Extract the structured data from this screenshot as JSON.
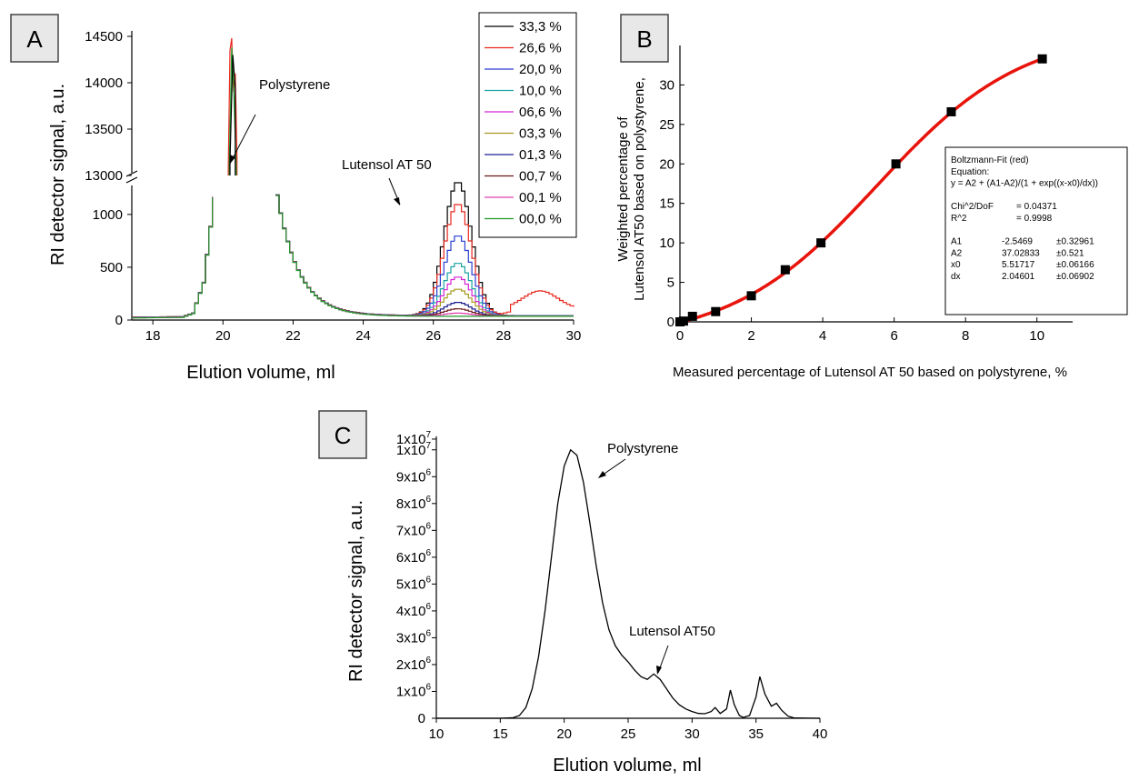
{
  "panels": {
    "a": {
      "label": "A"
    },
    "b": {
      "label": "B"
    },
    "c": {
      "label": "C"
    }
  },
  "chart_data": [
    {
      "type": "line",
      "panel": "A",
      "xlabel": "Elution volume, ml",
      "ylabel": "RI detector signal, a.u.",
      "xlim": [
        17.4,
        30
      ],
      "ylim_lower": [
        0,
        1300
      ],
      "ylim_upper": [
        13000,
        14500
      ],
      "axis_break": true,
      "x_ticks": [
        "18",
        "20",
        "22",
        "24",
        "26",
        "28",
        "30"
      ],
      "y_ticks_lower": [
        "0",
        "500",
        "1000"
      ],
      "y_ticks_upper": [
        "13000",
        "13500",
        "14000",
        "14500"
      ],
      "annotations": [
        "Polystyrene",
        "Lutensol AT 50"
      ],
      "legend_position": "top-right",
      "series": [
        {
          "name": "33,3 %",
          "color": "#000000",
          "lutensol_peak": 1270
        },
        {
          "name": "26,6 %",
          "color": "#e8281e",
          "lutensol_peak": 1060,
          "tail_bump": 175
        },
        {
          "name": "20,0 %",
          "color": "#2a3fd0",
          "lutensol_peak": 760
        },
        {
          "name": "10,0 %",
          "color": "#1aa3a3",
          "lutensol_peak": 500
        },
        {
          "name": "06,6 %",
          "color": "#d424d4",
          "lutensol_peak": 370
        },
        {
          "name": "03,3 %",
          "color": "#a89a22",
          "lutensol_peak": 255
        },
        {
          "name": "01,3 %",
          "color": "#1e1e90",
          "lutensol_peak": 130
        },
        {
          "name": "00,7 %",
          "color": "#6b1818",
          "lutensol_peak": 70
        },
        {
          "name": "00,1 %",
          "color": "#e040b0",
          "lutensol_peak": 30
        },
        {
          "name": "00,0 %",
          "color": "#1f9a2a",
          "lutensol_peak": 0
        }
      ]
    },
    {
      "type": "scatter",
      "panel": "B",
      "xlabel": "Measured percentage of Lutensol AT 50 based on polystyrene, %",
      "ylabel": "Weighted percentage of\nLutensol AT50 based on polystyrene,",
      "xlim": [
        0,
        11
      ],
      "ylim": [
        0,
        35
      ],
      "x_ticks": [
        "0",
        "2",
        "4",
        "6",
        "8",
        "10"
      ],
      "y_ticks": [
        "0",
        "5",
        "10",
        "15",
        "20",
        "25",
        "30"
      ],
      "points": [
        {
          "x": 0.0,
          "y": 0.0
        },
        {
          "x": 0.1,
          "y": 0.1
        },
        {
          "x": 0.35,
          "y": 0.7
        },
        {
          "x": 1.0,
          "y": 1.3
        },
        {
          "x": 2.0,
          "y": 3.3
        },
        {
          "x": 2.95,
          "y": 6.6
        },
        {
          "x": 3.95,
          "y": 10.0
        },
        {
          "x": 6.05,
          "y": 20.0
        },
        {
          "x": 7.6,
          "y": 26.6
        },
        {
          "x": 10.15,
          "y": 33.3
        }
      ],
      "fit": {
        "name": "Boltzmann-Fit (red)",
        "color": "#e8140c",
        "A1": -2.5469,
        "A2": 37.02833,
        "x0": 5.51717,
        "dx": 2.04601,
        "xrange": [
          0,
          10.15
        ]
      },
      "fit_box": {
        "lines": [
          {
            "cols": [
              "Boltzmann-Fit (red)"
            ]
          },
          {
            "cols": [
              "Equation:"
            ]
          },
          {
            "cols": [
              "y = A2 + (A1-A2)/(1 + exp((x-x0)/dx))"
            ]
          },
          {
            "cols": [
              ""
            ]
          },
          {
            "cols": [
              "Chi^2/DoF",
              "= 0.04371"
            ]
          },
          {
            "cols": [
              "R^2",
              "=  0.9998"
            ]
          },
          {
            "cols": [
              ""
            ]
          },
          {
            "cols": [
              "A1",
              "-2.5469",
              "±0.32961"
            ]
          },
          {
            "cols": [
              "A2",
              "37.02833",
              "±0.521"
            ]
          },
          {
            "cols": [
              "x0",
              "5.51717",
              "±0.06166"
            ]
          },
          {
            "cols": [
              "dx",
              "2.04601",
              "±0.06902"
            ]
          }
        ]
      }
    },
    {
      "type": "line",
      "panel": "C",
      "xlabel": "Elution volume, ml",
      "ylabel": "RI detector signal, a.u.",
      "xlim": [
        10,
        40
      ],
      "ylim": [
        0,
        10500000
      ],
      "x_ticks": [
        "10",
        "15",
        "20",
        "25",
        "30",
        "35",
        "40"
      ],
      "y_ticks": [
        "0",
        "1x10",
        "2x10",
        "3x10",
        "4x10",
        "5x10",
        "6x10",
        "7x10",
        "8x10",
        "9x10",
        "1x10",
        "1x10"
      ],
      "y_tick_exps": [
        "",
        "6",
        "6",
        "6",
        "6",
        "6",
        "6",
        "6",
        "6",
        "6",
        "7",
        "7"
      ],
      "annotations": [
        "Polystyrene",
        "Lutensol AT50"
      ],
      "points": [
        [
          10,
          0
        ],
        [
          15,
          0
        ],
        [
          16,
          20000
        ],
        [
          16.5,
          100000
        ],
        [
          17,
          400000
        ],
        [
          17.5,
          1100000
        ],
        [
          18,
          2300000
        ],
        [
          18.5,
          4000000
        ],
        [
          19,
          6000000
        ],
        [
          19.5,
          8000000
        ],
        [
          20,
          9400000
        ],
        [
          20.5,
          10000000
        ],
        [
          21,
          9800000
        ],
        [
          21.5,
          8800000
        ],
        [
          22,
          7300000
        ],
        [
          22.5,
          5700000
        ],
        [
          23,
          4300000
        ],
        [
          23.5,
          3300000
        ],
        [
          24,
          2700000
        ],
        [
          24.5,
          2350000
        ],
        [
          25,
          2100000
        ],
        [
          25.5,
          1800000
        ],
        [
          26,
          1550000
        ],
        [
          26.5,
          1450000
        ],
        [
          27,
          1650000
        ],
        [
          27.5,
          1450000
        ],
        [
          28,
          1100000
        ],
        [
          28.5,
          750000
        ],
        [
          29,
          500000
        ],
        [
          29.5,
          350000
        ],
        [
          30,
          250000
        ],
        [
          30.5,
          180000
        ],
        [
          31,
          170000
        ],
        [
          31.5,
          250000
        ],
        [
          31.8,
          400000
        ],
        [
          32.2,
          180000
        ],
        [
          32.7,
          350000
        ],
        [
          33,
          1050000
        ],
        [
          33.3,
          500000
        ],
        [
          33.7,
          100000
        ],
        [
          34,
          30000
        ],
        [
          34.5,
          100000
        ],
        [
          35,
          800000
        ],
        [
          35.3,
          1550000
        ],
        [
          35.7,
          900000
        ],
        [
          36.2,
          450000
        ],
        [
          36.6,
          560000
        ],
        [
          37,
          300000
        ],
        [
          37.5,
          80000
        ],
        [
          38,
          10000
        ],
        [
          40,
          0
        ]
      ]
    }
  ]
}
